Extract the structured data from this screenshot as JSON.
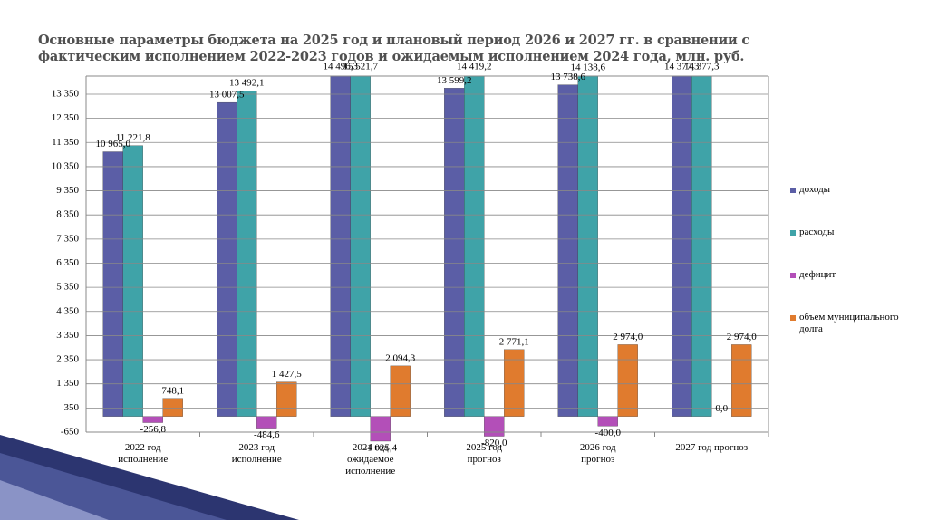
{
  "chart_data": {
    "type": "bar",
    "title": "Основные параметры бюджета на 2025 год и плановый период 2026 и 2027 гг. в сравнении с фактическим исполнением 2022-2023 годов и ожидаемым исполнением 2024 года, млн. руб.",
    "categories": [
      "2022 год\nисполнение",
      "2023 год\nисполнение",
      "2024 год\nожидаемое\nисполнение",
      "2025 год\nпрогноз",
      "2026 год\nпрогноз",
      "2027 год прогноз"
    ],
    "series": [
      {
        "name": "доходы",
        "color": "#5b5ea6",
        "values": [
          10965.0,
          13007.5,
          14496.3,
          13599.2,
          13738.6,
          14377.3
        ],
        "value_labels": [
          "10 965,0",
          "13 007,5",
          "14 496,3",
          "13 599,2",
          "13 738,6",
          "14 377,3"
        ]
      },
      {
        "name": "расходы",
        "color": "#3fa3a8",
        "values": [
          11221.8,
          13492.1,
          15521.7,
          14419.2,
          14138.6,
          14377.3
        ],
        "value_labels": [
          "11 221,8",
          "13 492,1",
          "15 521,7",
          "14 419,2",
          "14 138,6",
          "14 377,3"
        ]
      },
      {
        "name": "дефицит",
        "color": "#b34fb8",
        "values": [
          -256.8,
          -484.6,
          -1025.4,
          -820.0,
          -400.0,
          0.0
        ],
        "value_labels": [
          "-256,8",
          "-484,6",
          "-1 025,4",
          "-820,0",
          "-400,0",
          "0,0"
        ]
      },
      {
        "name": "объем муниципального долга",
        "color": "#e07b2e",
        "values": [
          748.1,
          1427.5,
          2094.3,
          2771.1,
          2974.0,
          2974.0
        ],
        "value_labels": [
          "748,1",
          "1 427,5",
          "2 094,3",
          "2 771,1",
          "2 974,0",
          "2 974,0"
        ]
      }
    ],
    "ylim": [
      -650,
      14100
    ],
    "yticks": [
      -650,
      350,
      {
        "value": 1350,
        "label": "1 350"
      },
      {
        "value": 2350,
        "label": "2 350"
      },
      {
        "value": 3350,
        "label": "3 350"
      },
      {
        "value": 4350,
        "label": "4 350"
      },
      {
        "value": 5350,
        "label": "5 350"
      },
      {
        "value": 6350,
        "label": "6 350"
      },
      {
        "value": 7350,
        "label": "7 350"
      },
      {
        "value": 8350,
        "label": "8 350"
      },
      {
        "value": 9350,
        "label": "9 350"
      },
      {
        "value": 10350,
        "label": "10 350"
      },
      {
        "value": 11350,
        "label": "11 350"
      },
      {
        "value": 12350,
        "label": "12 350"
      },
      {
        "value": 13350,
        "label": "13 350"
      }
    ],
    "grid": true,
    "legend": "right"
  }
}
